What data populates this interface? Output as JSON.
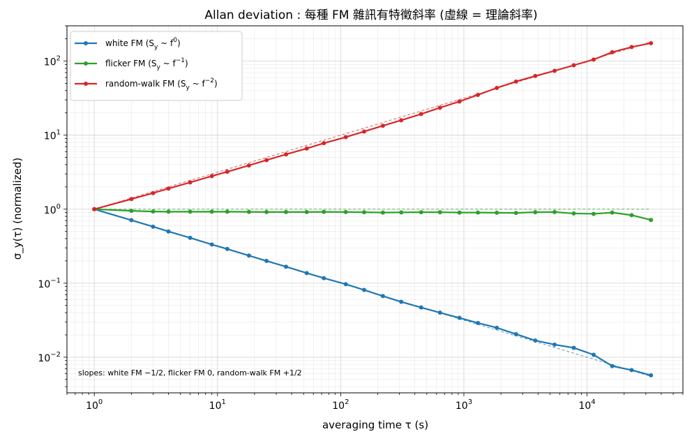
{
  "chart_data": {
    "type": "line",
    "title": "Allan deviation : 每種 FM 雜訊有特徵斜率 (虛線 = 理論斜率)",
    "xlabel": "averaging time τ (s)",
    "ylabel": "σ_y(τ) (normalized)",
    "xscale": "log",
    "yscale": "log",
    "xlim": [
      0.6,
      60000
    ],
    "ylim": [
      0.0033,
      300
    ],
    "grid": true,
    "legend_position": "top-left",
    "x_ticks": [
      {
        "value": 1,
        "base": "10",
        "exp": "0"
      },
      {
        "value": 10,
        "base": "10",
        "exp": "1"
      },
      {
        "value": 100,
        "base": "10",
        "exp": "2"
      },
      {
        "value": 1000,
        "base": "10",
        "exp": "3"
      },
      {
        "value": 10000,
        "base": "10",
        "exp": "4"
      }
    ],
    "y_ticks": [
      {
        "value": 0.01,
        "base": "10",
        "exp": "−2"
      },
      {
        "value": 0.1,
        "base": "10",
        "exp": "−1"
      },
      {
        "value": 1,
        "base": "10",
        "exp": "0"
      },
      {
        "value": 10,
        "base": "10",
        "exp": "1"
      },
      {
        "value": 100,
        "base": "10",
        "exp": "2"
      }
    ],
    "annotation": "slopes: white FM −1/2, flicker FM 0, random-walk FM +1/2",
    "x": [
      1,
      2,
      3,
      4,
      6,
      9,
      12,
      18,
      25,
      36,
      53,
      73,
      110,
      155,
      220,
      310,
      450,
      640,
      920,
      1300,
      1850,
      2650,
      3800,
      5450,
      7800,
      11300,
      16000,
      23000,
      33000
    ],
    "series": [
      {
        "name": "white FM",
        "legend_main": "white FM (S",
        "legend_sub": "y",
        "legend_mid": " ~ f",
        "legend_sup": "0",
        "legend_end": ")",
        "color": "#1f77b4",
        "slope": -0.5,
        "values": [
          1.0,
          0.71,
          0.58,
          0.5,
          0.41,
          0.333,
          0.29,
          0.236,
          0.2,
          0.167,
          0.137,
          0.117,
          0.097,
          0.081,
          0.067,
          0.056,
          0.047,
          0.04,
          0.034,
          0.029,
          0.025,
          0.0205,
          0.0168,
          0.0148,
          0.0134,
          0.0108,
          0.0076,
          0.0067,
          0.0057
        ]
      },
      {
        "name": "flicker FM",
        "legend_main": "flicker FM (S",
        "legend_sub": "y",
        "legend_mid": " ~ f",
        "legend_sup": "−1",
        "legend_end": ")",
        "color": "#2ca02c",
        "slope": 0,
        "values": [
          1.0,
          0.95,
          0.93,
          0.925,
          0.925,
          0.925,
          0.925,
          0.92,
          0.915,
          0.915,
          0.915,
          0.92,
          0.915,
          0.91,
          0.9,
          0.905,
          0.91,
          0.91,
          0.9,
          0.9,
          0.895,
          0.89,
          0.91,
          0.915,
          0.875,
          0.865,
          0.9,
          0.83,
          0.715
        ]
      },
      {
        "name": "random-walk FM",
        "legend_main": "random-walk FM (S",
        "legend_sub": "y",
        "legend_mid": " ~ f",
        "legend_sup": "−2",
        "legend_end": ")",
        "color": "#d62728",
        "slope": 0.5,
        "values": [
          1.0,
          1.37,
          1.65,
          1.9,
          2.3,
          2.8,
          3.2,
          3.9,
          4.6,
          5.5,
          6.6,
          7.8,
          9.4,
          11.2,
          13.4,
          15.9,
          19.3,
          23.5,
          28.5,
          35,
          43.5,
          53,
          63,
          74,
          88,
          105,
          132,
          155,
          175
        ]
      }
    ]
  }
}
